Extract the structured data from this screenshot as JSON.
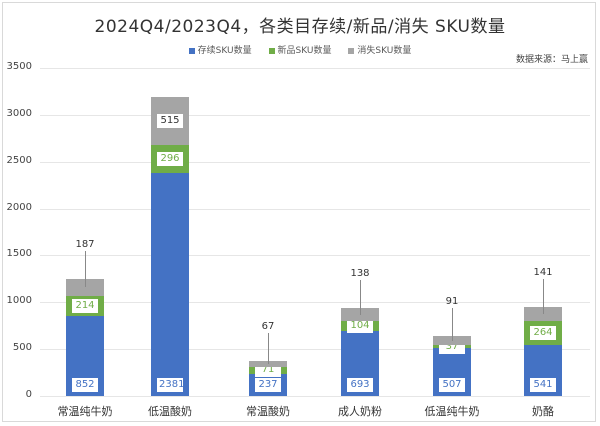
{
  "title": "2024Q4/2023Q4，各类目存续/新品/消失 SKU数量",
  "source": "数据来源：马上赢",
  "legend": [
    {
      "label": "存续SKU数量",
      "color": "#4472c4"
    },
    {
      "label": "新品SKU数量",
      "color": "#70ad47"
    },
    {
      "label": "消失SKU数量",
      "color": "#a5a5a5"
    }
  ],
  "y_ticks": [
    "3500",
    "3000",
    "2500",
    "2000",
    "1500",
    "1000",
    "500",
    "0"
  ],
  "chart_data": {
    "type": "bar",
    "stacked": true,
    "title": "2024Q4/2023Q4，各类目存续/新品/消失 SKU数量",
    "xlabel": "",
    "ylabel": "",
    "ylim": [
      0,
      3500
    ],
    "grid": true,
    "legend_position": "top",
    "categories": [
      "常温纯牛奶",
      "低温酸奶",
      "常温酸奶",
      "成人奶粉",
      "低温纯牛奶",
      "奶酪"
    ],
    "series": [
      {
        "name": "存续SKU数量",
        "color": "#4472c4",
        "values": [
          852,
          2381,
          237,
          693,
          507,
          541
        ]
      },
      {
        "name": "新品SKU数量",
        "color": "#70ad47",
        "values": [
          214,
          296,
          71,
          104,
          37,
          264
        ]
      },
      {
        "name": "消失SKU数量",
        "color": "#a5a5a5",
        "values": [
          187,
          515,
          67,
          138,
          91,
          141
        ]
      }
    ],
    "annotation": "数据来源：马上赢"
  }
}
